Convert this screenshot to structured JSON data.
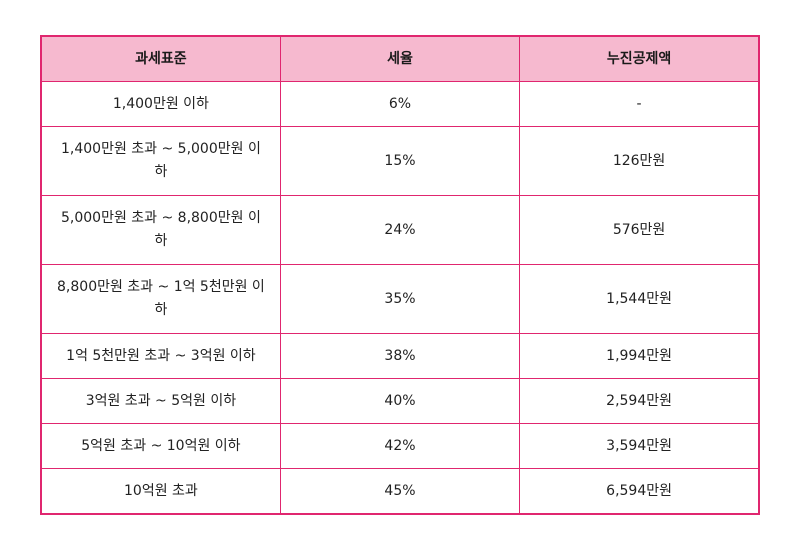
{
  "table": {
    "headers": [
      "과세표준",
      "세율",
      "누진공제액"
    ],
    "rows": [
      {
        "base": "1,400만원 이하",
        "rate": "6%",
        "deduction": "-"
      },
      {
        "base": "1,400만원 초과 ~ 5,000만원 이하",
        "rate": "15%",
        "deduction": "126만원"
      },
      {
        "base": "5,000만원 초과 ~ 8,800만원 이하",
        "rate": "24%",
        "deduction": "576만원"
      },
      {
        "base": "8,800만원 초과 ~ 1억 5천만원 이하",
        "rate": "35%",
        "deduction": "1,544만원"
      },
      {
        "base": "1억 5천만원 초과 ~ 3억원 이하",
        "rate": "38%",
        "deduction": "1,994만원"
      },
      {
        "base": "3억원 초과 ~ 5억원 이하",
        "rate": "40%",
        "deduction": "2,594만원"
      },
      {
        "base": "5억원 초과 ~ 10억원 이하",
        "rate": "42%",
        "deduction": "3,594만원"
      },
      {
        "base": "10억원 초과",
        "rate": "45%",
        "deduction": "6,594만원"
      }
    ]
  },
  "colors": {
    "border": "#e0266f",
    "header_bg": "#f6b9cf"
  }
}
